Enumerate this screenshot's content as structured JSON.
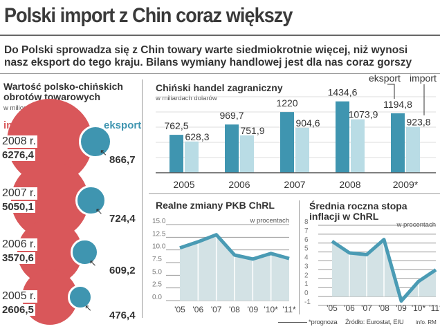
{
  "title": "Polski import z Chin coraz większy",
  "subtitle": [
    "Do Polski sprowadza się z Chin towary warte siedmiokrotnie więcej, niż wynosi",
    "nasz eksport do tego kraju. Bilans wymiany handlowej jest dla nas coraz gorszy"
  ],
  "colors": {
    "import": "#d9575a",
    "eksport": "#3f95b0",
    "eksport_light": "#b9dce5",
    "line": "#4a9bb4",
    "area": "#d3e2e5"
  },
  "chart_data": [
    {
      "type": "bubble",
      "title": "Wartość polsko-chińskich obrotów towarowych",
      "unit": "w milionach euro",
      "legend": [
        "import",
        "eksport"
      ],
      "rows": [
        {
          "year": "2008 r.",
          "import": "6276,4",
          "eksport": "866,7",
          "import_v": 6276.4,
          "eksport_v": 866.7
        },
        {
          "year": "2007 r.",
          "import": "5050,1",
          "eksport": "724,4",
          "import_v": 5050.1,
          "eksport_v": 724.4
        },
        {
          "year": "2006 r.",
          "import": "3570,6",
          "eksport": "609,2",
          "import_v": 3570.6,
          "eksport_v": 609.2
        },
        {
          "year": "2005 r.",
          "import": "2606,5",
          "eksport": "476,4",
          "import_v": 2606.5,
          "eksport_v": 476.4
        }
      ]
    },
    {
      "type": "bar",
      "title": "Chiński handel zagraniczny",
      "unit": "w miliardach dolarów",
      "legend": [
        "eksport",
        "import"
      ],
      "categories": [
        "2005",
        "2006",
        "2007",
        "2008",
        "2009*"
      ],
      "series": [
        {
          "name": "eksport",
          "values": [
            762.5,
            969.7,
            1220,
            1434.6,
            1194.8
          ],
          "labels": [
            "762,5",
            "969,7",
            "1220",
            "1434,6",
            "1194,8"
          ]
        },
        {
          "name": "import",
          "values": [
            628.3,
            751.9,
            904.6,
            1073.9,
            923.8
          ],
          "labels": [
            "628,3",
            "751,9",
            "904,6",
            "1073,9",
            "923,8"
          ]
        }
      ],
      "ylim": [
        0,
        1500
      ]
    },
    {
      "type": "area",
      "title": "Realne zmiany PKB ChRL",
      "unit": "w procentach",
      "categories": [
        "'05",
        "'06",
        "'07",
        "'08",
        "'09",
        "'10*",
        "'11*"
      ],
      "values": [
        10.4,
        11.6,
        13.0,
        9.0,
        8.2,
        9.3,
        8.3
      ],
      "ylim": [
        0,
        15
      ],
      "yticks": [
        "0.0",
        "2.5",
        "5.0",
        "7.5",
        "10.0",
        "12.5",
        "15.0"
      ]
    },
    {
      "type": "area",
      "title": "Średnia roczna stopa inflacji w ChRL",
      "unit": "w procentach",
      "categories": [
        "'05",
        "'06",
        "'07",
        "'08",
        "'09",
        "'10*",
        "'11*"
      ],
      "values": [
        6.2,
        4.9,
        4.7,
        6.4,
        -0.5,
        1.7,
        3.0
      ],
      "ylim": [
        -1,
        8
      ],
      "yticks": [
        "-1",
        "0",
        "1",
        "2",
        "3",
        "4",
        "5",
        "6",
        "7",
        "8"
      ]
    }
  ],
  "footer": {
    "note": "*prognoza",
    "source": "Źródło: Eurostat, EIU",
    "credit": "info. RM"
  }
}
